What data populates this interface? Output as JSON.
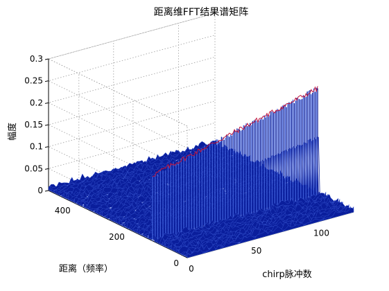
{
  "chart_data": {
    "type": "surface3d",
    "title": "距离维FFT结果谱矩阵",
    "xlabel": "chirp脉冲数",
    "ylabel": "距离（频率）",
    "zlabel": "幅度",
    "x_ticks": [
      0,
      50,
      100
    ],
    "y_ticks": [
      0,
      200,
      400
    ],
    "z_ticks": [
      0,
      0.05,
      0.1,
      0.15,
      0.2,
      0.25,
      0.3
    ],
    "xlim": [
      0,
      128
    ],
    "ylim": [
      0,
      512
    ],
    "zlim": [
      0,
      0.3
    ],
    "grid": true,
    "series": [
      {
        "peak_range_bin": 128,
        "peak_amplitude_start": 0.15,
        "peak_amplitude_end": 0.245,
        "noise_floor_max": 0.02
      }
    ],
    "colors": {
      "surface": "#0a1e9c",
      "surface_light": "#3b5bd6",
      "peak_edge": "#c0143c",
      "grid": "#9a9a9a",
      "axis": "#000000"
    }
  }
}
